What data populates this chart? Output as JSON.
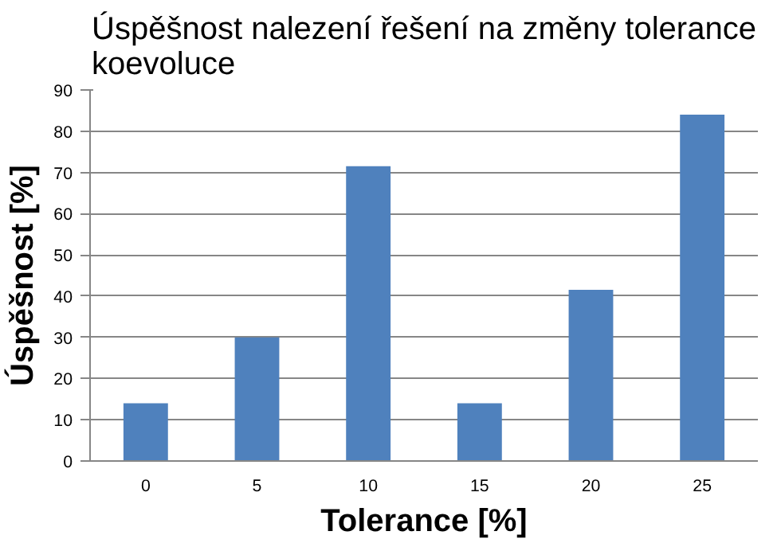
{
  "chart_data": {
    "type": "bar",
    "title": "Úspěšnost nalezení řešení na změny tolerance koevoluce",
    "xlabel": "Tolerance [%]",
    "ylabel": "Úspěšnost [%]",
    "categories": [
      "0",
      "5",
      "10",
      "15",
      "20",
      "25"
    ],
    "values": [
      14,
      30,
      71.5,
      14,
      41.5,
      84
    ],
    "color": "#4f81bd",
    "ylim": [
      0,
      90
    ],
    "yticks": [
      0,
      10,
      20,
      30,
      40,
      50,
      60,
      70,
      80,
      90
    ],
    "grid": "y"
  }
}
